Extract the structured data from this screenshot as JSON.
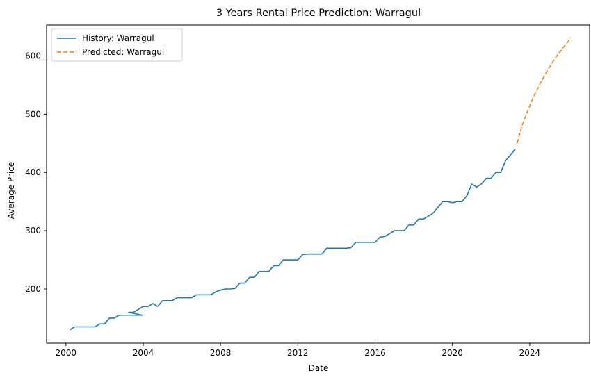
{
  "chart_data": {
    "type": "line",
    "title": "3 Years Rental Price Prediction: Warragul",
    "xlabel": "Date",
    "ylabel": "Average Price",
    "xlim": [
      1999.0,
      2027.1
    ],
    "ylim": [
      107,
      653
    ],
    "x_ticks": [
      2000,
      2004,
      2008,
      2012,
      2016,
      2020,
      2024
    ],
    "x_tick_labels": [
      "2000",
      "2004",
      "2008",
      "2012",
      "2016",
      "2020",
      "2024"
    ],
    "y_ticks": [
      200,
      300,
      400,
      500,
      600
    ],
    "y_tick_labels": [
      "200",
      "300",
      "400",
      "500",
      "600"
    ],
    "grid": false,
    "legend_position": "top-left",
    "series": [
      {
        "name": "History: Warragul",
        "color": "#1f77b4",
        "style": "solid",
        "points": [
          [
            2000.2,
            130
          ],
          [
            2000.45,
            135
          ],
          [
            2000.7,
            135
          ],
          [
            2001.0,
            135
          ],
          [
            2001.25,
            135
          ],
          [
            2001.5,
            135
          ],
          [
            2001.75,
            140
          ],
          [
            2002.0,
            140
          ],
          [
            2002.25,
            150
          ],
          [
            2002.5,
            150
          ],
          [
            2002.75,
            155
          ],
          [
            2003.0,
            155
          ],
          [
            2003.25,
            155
          ],
          [
            2003.5,
            155
          ],
          [
            2003.75,
            155
          ],
          [
            2003.95,
            155
          ],
          [
            2003.25,
            160
          ],
          [
            2003.5,
            160
          ],
          [
            2003.75,
            165
          ],
          [
            2004.0,
            170
          ],
          [
            2004.25,
            170
          ],
          [
            2004.5,
            175
          ],
          [
            2004.75,
            170
          ],
          [
            2005.0,
            180
          ],
          [
            2005.25,
            180
          ],
          [
            2005.5,
            180
          ],
          [
            2005.75,
            185
          ],
          [
            2006.0,
            185
          ],
          [
            2006.25,
            185
          ],
          [
            2006.5,
            185
          ],
          [
            2006.75,
            190
          ],
          [
            2007.0,
            190
          ],
          [
            2007.25,
            190
          ],
          [
            2007.5,
            190
          ],
          [
            2007.75,
            195
          ],
          [
            2008.0,
            198
          ],
          [
            2008.25,
            200
          ],
          [
            2008.5,
            200
          ],
          [
            2008.75,
            201
          ],
          [
            2009.0,
            210
          ],
          [
            2009.25,
            210
          ],
          [
            2009.5,
            220
          ],
          [
            2009.75,
            220
          ],
          [
            2010.0,
            230
          ],
          [
            2010.25,
            230
          ],
          [
            2010.5,
            230
          ],
          [
            2010.75,
            240
          ],
          [
            2011.0,
            240
          ],
          [
            2011.25,
            250
          ],
          [
            2011.5,
            250
          ],
          [
            2011.75,
            250
          ],
          [
            2012.0,
            250
          ],
          [
            2012.25,
            259
          ],
          [
            2012.5,
            260
          ],
          [
            2012.75,
            260
          ],
          [
            2013.0,
            260
          ],
          [
            2013.25,
            260
          ],
          [
            2013.5,
            270
          ],
          [
            2013.75,
            270
          ],
          [
            2014.0,
            270
          ],
          [
            2014.25,
            270
          ],
          [
            2014.5,
            270
          ],
          [
            2014.75,
            271
          ],
          [
            2015.0,
            280
          ],
          [
            2015.25,
            280
          ],
          [
            2015.5,
            280
          ],
          [
            2015.75,
            280
          ],
          [
            2016.0,
            280
          ],
          [
            2016.25,
            289
          ],
          [
            2016.5,
            290
          ],
          [
            2016.75,
            295
          ],
          [
            2017.0,
            300
          ],
          [
            2017.25,
            300
          ],
          [
            2017.5,
            300
          ],
          [
            2017.75,
            310
          ],
          [
            2018.0,
            310
          ],
          [
            2018.25,
            320
          ],
          [
            2018.5,
            320
          ],
          [
            2018.75,
            325
          ],
          [
            2019.0,
            330
          ],
          [
            2019.25,
            340
          ],
          [
            2019.5,
            350
          ],
          [
            2019.75,
            350
          ],
          [
            2020.0,
            348
          ],
          [
            2020.25,
            350
          ],
          [
            2020.5,
            350
          ],
          [
            2020.75,
            360
          ],
          [
            2021.0,
            380
          ],
          [
            2021.25,
            375
          ],
          [
            2021.5,
            380
          ],
          [
            2021.75,
            390
          ],
          [
            2022.0,
            390
          ],
          [
            2022.25,
            400
          ],
          [
            2022.5,
            400
          ],
          [
            2022.75,
            420
          ],
          [
            2023.0,
            430
          ],
          [
            2023.25,
            440
          ]
        ]
      },
      {
        "name": "Predicted: Warragul",
        "color": "#ff7f0e",
        "style": "dashed",
        "points": [
          [
            2023.35,
            450
          ],
          [
            2023.6,
            480
          ],
          [
            2023.9,
            506
          ],
          [
            2024.2,
            530
          ],
          [
            2024.5,
            550
          ],
          [
            2024.8,
            568
          ],
          [
            2025.1,
            585
          ],
          [
            2025.4,
            600
          ],
          [
            2025.7,
            613
          ],
          [
            2026.0,
            625
          ],
          [
            2026.1,
            632
          ]
        ]
      }
    ]
  }
}
